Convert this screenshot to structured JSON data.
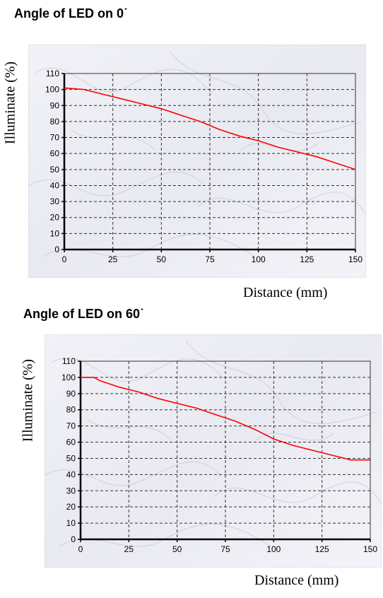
{
  "chart_data": [
    {
      "type": "line",
      "title": "Angle of LED on 0˙",
      "xlabel": "Distance (mm)",
      "ylabel": "Illuminate (%)",
      "xlim": [
        0,
        150
      ],
      "ylim": [
        0,
        110
      ],
      "x_ticks": [
        "0",
        "25",
        "50",
        "75",
        "100",
        "125",
        "150"
      ],
      "y_ticks": [
        "0",
        "10",
        "20",
        "30",
        "40",
        "50",
        "60",
        "70",
        "80",
        "90",
        "100",
        "110"
      ],
      "grid": true,
      "series": [
        {
          "color": "#ff0000",
          "x": [
            0,
            10,
            20,
            30,
            40,
            50,
            60,
            70,
            80,
            90,
            100,
            110,
            120,
            130,
            140,
            150
          ],
          "y": [
            101,
            100,
            97,
            94,
            91,
            88,
            84,
            80,
            75,
            71,
            68,
            64,
            61,
            58,
            54,
            50
          ]
        }
      ]
    },
    {
      "type": "line",
      "title": "Angle of LED on 60˙",
      "xlabel": "Distance (mm)",
      "ylabel": "Illuminate (%)",
      "xlim": [
        0,
        150
      ],
      "ylim": [
        0,
        110
      ],
      "x_ticks": [
        "0",
        "25",
        "50",
        "75",
        "100",
        "125",
        "150"
      ],
      "y_ticks": [
        "0",
        "10",
        "20",
        "30",
        "40",
        "50",
        "60",
        "70",
        "80",
        "90",
        "100",
        "110"
      ],
      "grid": true,
      "series": [
        {
          "color": "#ff0000",
          "x": [
            0,
            7,
            10,
            20,
            30,
            40,
            50,
            60,
            70,
            80,
            90,
            100,
            110,
            120,
            130,
            140,
            150
          ],
          "y": [
            100,
            100,
            98,
            94,
            91,
            87,
            84,
            81,
            77,
            73,
            68,
            62,
            58,
            55,
            52,
            49,
            49
          ]
        }
      ]
    }
  ]
}
